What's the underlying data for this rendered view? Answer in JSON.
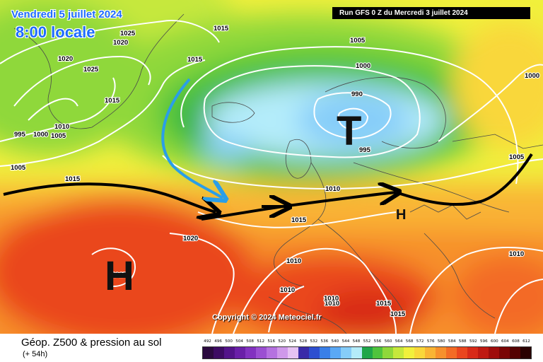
{
  "header": {
    "date": "Vendredi 5 juillet 2024",
    "time": "8:00 locale",
    "run": "Run GFS 0 Z du Mercredi 3 juillet 2024"
  },
  "copyright": "Copyright © 2024 Meteociel.fr",
  "footer": {
    "title": "Géop. Z500 & pression au sol",
    "subtitle": "(+ 54h)"
  },
  "pressure_centers": [
    {
      "letter": "T",
      "kind": "low"
    },
    {
      "letter": "H",
      "kind": "high"
    },
    {
      "letter": "H",
      "kind": "high"
    }
  ],
  "isobar_labels": [
    "1025",
    "1020",
    "1015",
    "1020",
    "1025",
    "1015",
    "1015",
    "995",
    "1000",
    "1005",
    "1010",
    "1005",
    "1000",
    "990",
    "995",
    "1005",
    "1010",
    "1015",
    "1020",
    "1025",
    "1010",
    "1010",
    "1010",
    "1010",
    "1015",
    "1015",
    "1010",
    "1000",
    "1005",
    "1015"
  ],
  "legend": {
    "unit": "dam",
    "values": [
      "492",
      "496",
      "500",
      "504",
      "508",
      "512",
      "516",
      "520",
      "524",
      "528",
      "532",
      "536",
      "540",
      "544",
      "548",
      "552",
      "556",
      "560",
      "564",
      "568",
      "572",
      "576",
      "580",
      "584",
      "588",
      "592",
      "596",
      "600",
      "604",
      "608",
      "612"
    ],
    "colors": [
      "#2b0a3f",
      "#3d0b63",
      "#53138a",
      "#6a1fa8",
      "#8232c0",
      "#9b4fd2",
      "#b571e0",
      "#cf98ea",
      "#e6c2f3",
      "#3a2ba8",
      "#2e4fd0",
      "#3a7fe8",
      "#5aa8f5",
      "#86cdf9",
      "#b4ecfa",
      "#1fa64a",
      "#4fc43d",
      "#8fd83a",
      "#c6e83c",
      "#f1f03c",
      "#f9d73a",
      "#f9b434",
      "#f7902c",
      "#f36b25",
      "#ea461e",
      "#d82a18",
      "#bf1912",
      "#9f0d0c",
      "#7a0606",
      "#540202",
      "#2a0000"
    ]
  },
  "fronts": [
    {
      "kind": "surface-trough-arrow",
      "color": "#000000"
    },
    {
      "kind": "cold-air-arrow",
      "color": "#2a9ee8"
    }
  ]
}
